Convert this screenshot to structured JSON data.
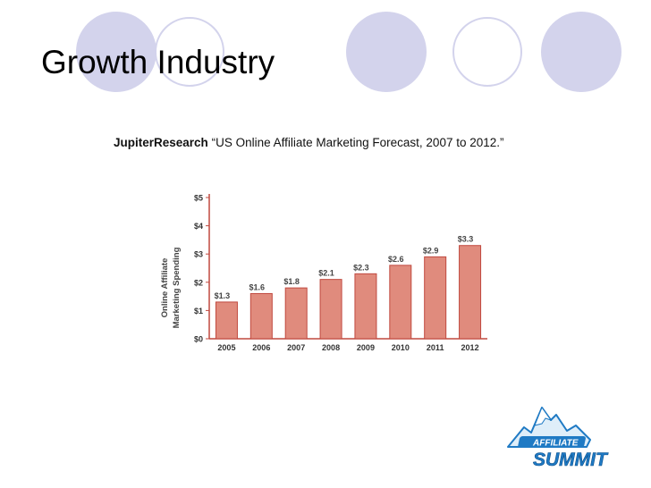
{
  "slide": {
    "title": "Growth Industry",
    "source_name": "JupiterResearch",
    "source_report": "“US Online Affiliate Marketing Forecast, 2007 to 2012.”"
  },
  "logo": {
    "line1": "AFFILIATE",
    "line2": "SUMMIT"
  },
  "colors": {
    "circle_fill": "#d3d3ec",
    "circle_outline": "#d3d3ec",
    "bar_fill": "#e08b7d",
    "bar_stroke": "#c0493f",
    "axis_color": "#c0493f",
    "logo_blue": "#1f7ac4"
  },
  "chart_data": {
    "type": "bar",
    "title": "",
    "ylabel_lines": [
      "Online Affiliate",
      "Marketing Spending"
    ],
    "xlabel": "",
    "categories": [
      "2005",
      "2006",
      "2007",
      "2008",
      "2009",
      "2010",
      "2011",
      "2012"
    ],
    "values": [
      1.3,
      1.6,
      1.8,
      2.1,
      2.3,
      2.6,
      2.9,
      3.3
    ],
    "data_labels": [
      "$1.3",
      "$1.6",
      "$1.8",
      "$2.1",
      "$2.3",
      "$2.6",
      "$2.9",
      "$3.3"
    ],
    "ylim": [
      0,
      5
    ],
    "yticks": [
      0,
      1,
      2,
      3,
      4,
      5
    ],
    "ytick_labels": [
      "$0",
      "$1",
      "$2",
      "$3",
      "$4",
      "$5"
    ],
    "grid": false
  }
}
